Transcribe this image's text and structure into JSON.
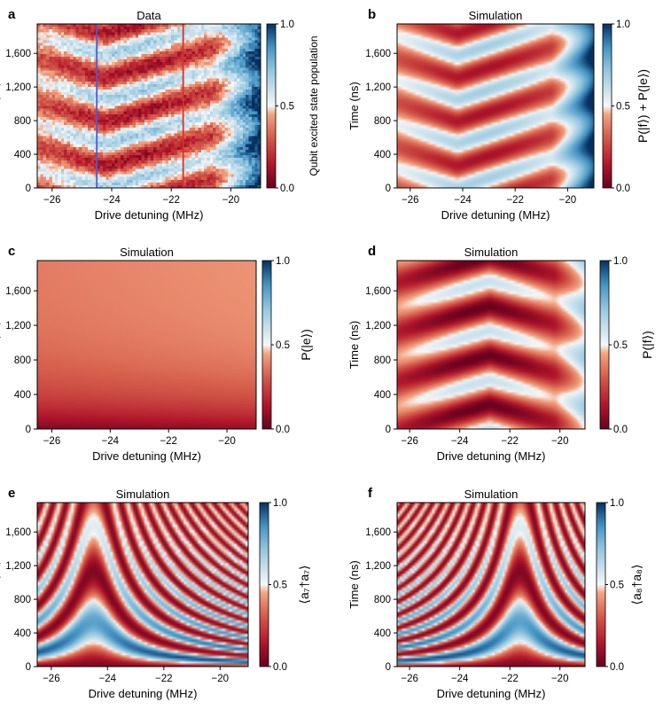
{
  "colormap": {
    "low": "#67001f",
    "mid": "#f7f7f7",
    "high": "#053061"
  },
  "chart_data": [
    {
      "type": "heatmap",
      "panel": "a",
      "title": "Data",
      "xlabel": "Drive detuning (MHz)",
      "ylabel": "Time (ns)",
      "xlim": [
        -26.5,
        -19
      ],
      "ylim": [
        0,
        1950
      ],
      "xticks": [
        -26,
        -24,
        -22,
        -20
      ],
      "xtick_labels": [
        "−26",
        "−24",
        "−22",
        "−20"
      ],
      "yticks": [
        0,
        400,
        800,
        1200,
        1600
      ],
      "ytick_labels": [
        "0",
        "400",
        "800",
        "1,200",
        "1,600"
      ],
      "colorbar": {
        "label": "Qubit excited state population",
        "range": [
          0,
          1
        ],
        "ticks": [
          0,
          0.5,
          1
        ],
        "tick_labels": [
          "0.0",
          "0.5",
          "1.0"
        ]
      },
      "model": "sum",
      "noise": true,
      "vlines": [
        {
          "x": -24.5,
          "color": "#4a5bd6"
        },
        {
          "x": -21.6,
          "color": "#d9312d"
        }
      ]
    },
    {
      "type": "heatmap",
      "panel": "b",
      "title": "Simulation",
      "xlabel": "Drive detuning (MHz)",
      "ylabel": "Time (ns)",
      "xlim": [
        -26.5,
        -19
      ],
      "ylim": [
        0,
        1950
      ],
      "xticks": [
        -26,
        -24,
        -22,
        -20
      ],
      "xtick_labels": [
        "−26",
        "−24",
        "−22",
        "−20"
      ],
      "yticks": [
        0,
        400,
        800,
        1200,
        1600
      ],
      "ytick_labels": [
        "0",
        "400",
        "800",
        "1,200",
        "1,600"
      ],
      "colorbar": {
        "label": "P(|f⟩) + P(|e⟩)",
        "range": [
          0,
          1
        ],
        "ticks": [
          0,
          0.5,
          1
        ],
        "tick_labels": [
          "0.0",
          "0.5",
          "1.0"
        ]
      },
      "model": "sum",
      "noise": false
    },
    {
      "type": "heatmap",
      "panel": "c",
      "title": "Simulation",
      "xlabel": "Drive detuning (MHz)",
      "ylabel": "Time (ns)",
      "xlim": [
        -26.5,
        -19
      ],
      "ylim": [
        0,
        1950
      ],
      "xticks": [
        -26,
        -24,
        -22,
        -20
      ],
      "xtick_labels": [
        "−26",
        "−24",
        "−22",
        "−20"
      ],
      "yticks": [
        0,
        400,
        800,
        1200,
        1600
      ],
      "ytick_labels": [
        "0",
        "400",
        "800",
        "1,200",
        "1,600"
      ],
      "colorbar": {
        "label": "P(|e⟩)",
        "range": [
          0,
          1
        ],
        "ticks": [
          0,
          0.5,
          1
        ],
        "tick_labels": [
          "0.0",
          "0.5",
          "1.0"
        ]
      },
      "model": "e",
      "noise": false
    },
    {
      "type": "heatmap",
      "panel": "d",
      "title": "Simulation",
      "xlabel": "Drive detuning (MHz)",
      "ylabel": "Time (ns)",
      "xlim": [
        -26.5,
        -19
      ],
      "ylim": [
        0,
        1950
      ],
      "xticks": [
        -26,
        -24,
        -22,
        -20
      ],
      "xtick_labels": [
        "−26",
        "−24",
        "−22",
        "−20"
      ],
      "yticks": [
        0,
        400,
        800,
        1200,
        1600
      ],
      "ytick_labels": [
        "0",
        "400",
        "800",
        "1,200",
        "1,600"
      ],
      "colorbar": {
        "label": "P(|f⟩)",
        "range": [
          0,
          1
        ],
        "ticks": [
          0,
          0.5,
          1
        ],
        "tick_labels": [
          "0.0",
          "0.5",
          "1.0"
        ]
      },
      "model": "f",
      "noise": false
    },
    {
      "type": "heatmap",
      "panel": "e",
      "title": "Simulation",
      "xlabel": "Drive detuning (MHz)",
      "ylabel": "Time (ns)",
      "xlim": [
        -26.5,
        -19
      ],
      "ylim": [
        0,
        1950
      ],
      "xticks": [
        -26,
        -24,
        -22,
        -20
      ],
      "xtick_labels": [
        "−26",
        "−24",
        "−22",
        "−20"
      ],
      "yticks": [
        0,
        400,
        800,
        1200,
        1600
      ],
      "ytick_labels": [
        "0",
        "400",
        "800",
        "1,200",
        "1,600"
      ],
      "colorbar": {
        "label": "⟨a₇†a₇⟩",
        "range": [
          0,
          1
        ],
        "ticks": [
          0,
          0.5,
          1
        ],
        "tick_labels": [
          "0.0",
          "0.5",
          "1.0"
        ]
      },
      "model": "mode",
      "center": -24.5,
      "noise": false
    },
    {
      "type": "heatmap",
      "panel": "f",
      "title": "Simulation",
      "xlabel": "Drive detuning (MHz)",
      "ylabel": "Time (ns)",
      "xlim": [
        -26.5,
        -19
      ],
      "ylim": [
        0,
        1950
      ],
      "xticks": [
        -26,
        -24,
        -22,
        -20
      ],
      "xtick_labels": [
        "−26",
        "−24",
        "−22",
        "−20"
      ],
      "yticks": [
        0,
        400,
        800,
        1200,
        1600
      ],
      "ytick_labels": [
        "0",
        "400",
        "800",
        "1,200",
        "1,600"
      ],
      "colorbar": {
        "label": "⟨a₈†a₈⟩",
        "range": [
          0,
          1
        ],
        "ticks": [
          0,
          0.5,
          1
        ],
        "tick_labels": [
          "0.0",
          "0.5",
          "1.0"
        ]
      },
      "model": "mode",
      "center": -21.6,
      "noise": false
    }
  ]
}
